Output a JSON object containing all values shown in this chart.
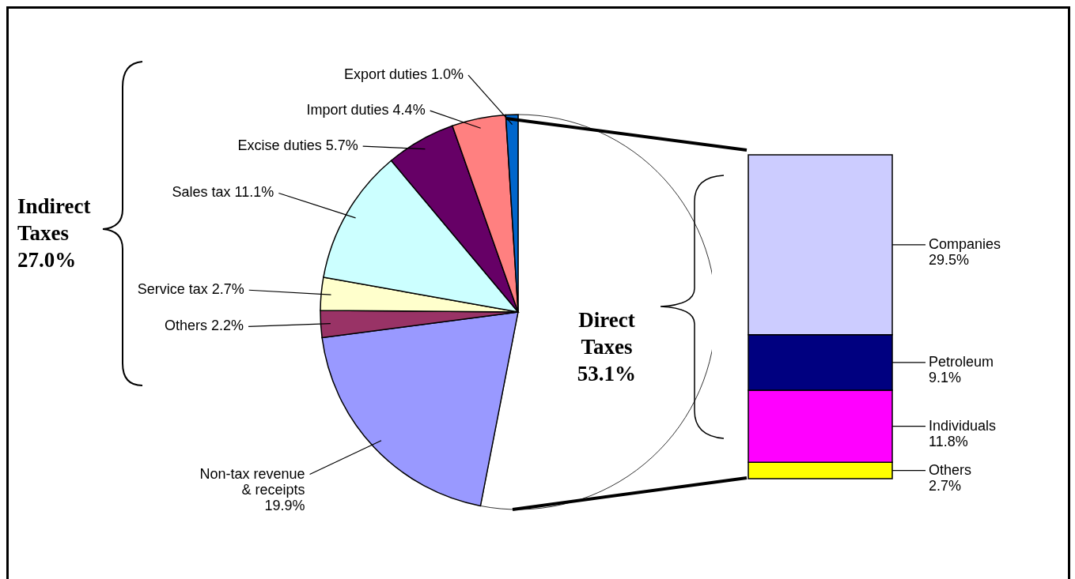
{
  "chart_data": [
    {
      "type": "pie",
      "categories": [
        "Direct Taxes",
        "Non-tax revenue & receipts",
        "Others",
        "Service tax",
        "Sales tax",
        "Excise duties",
        "Import duties",
        "Export duties"
      ],
      "values": [
        53.1,
        19.9,
        2.2,
        2.7,
        11.1,
        5.7,
        4.4,
        1.0
      ],
      "colors": [
        "#ffffff",
        "#9999ff",
        "#993366",
        "#ffffcc",
        "#ccffff",
        "#660066",
        "#ff8080",
        "#0066cc"
      ],
      "value_labels": [
        "53.1%",
        "19.9%",
        "2.2%",
        "2.7%",
        "11.1%",
        "5.7%",
        "4.4%",
        "1.0%"
      ],
      "annotations": [
        "Indirect Taxes 27.0%"
      ]
    },
    {
      "type": "bar",
      "stacked": true,
      "categories": [
        null
      ],
      "series": [
        {
          "name": "Others",
          "color": "#ffff00",
          "values": [
            2.7
          ],
          "value_labels": [
            "2.7%"
          ]
        },
        {
          "name": "Individuals",
          "color": "#ff00ff",
          "values": [
            11.8
          ],
          "value_labels": [
            "11.8%"
          ]
        },
        {
          "name": "Petroleum",
          "color": "#000080",
          "values": [
            9.1
          ],
          "value_labels": [
            "9.1%"
          ]
        },
        {
          "name": "Companies",
          "color": "#ccccff",
          "values": [
            29.5
          ],
          "value_labels": [
            "29.5%"
          ]
        }
      ]
    }
  ]
}
